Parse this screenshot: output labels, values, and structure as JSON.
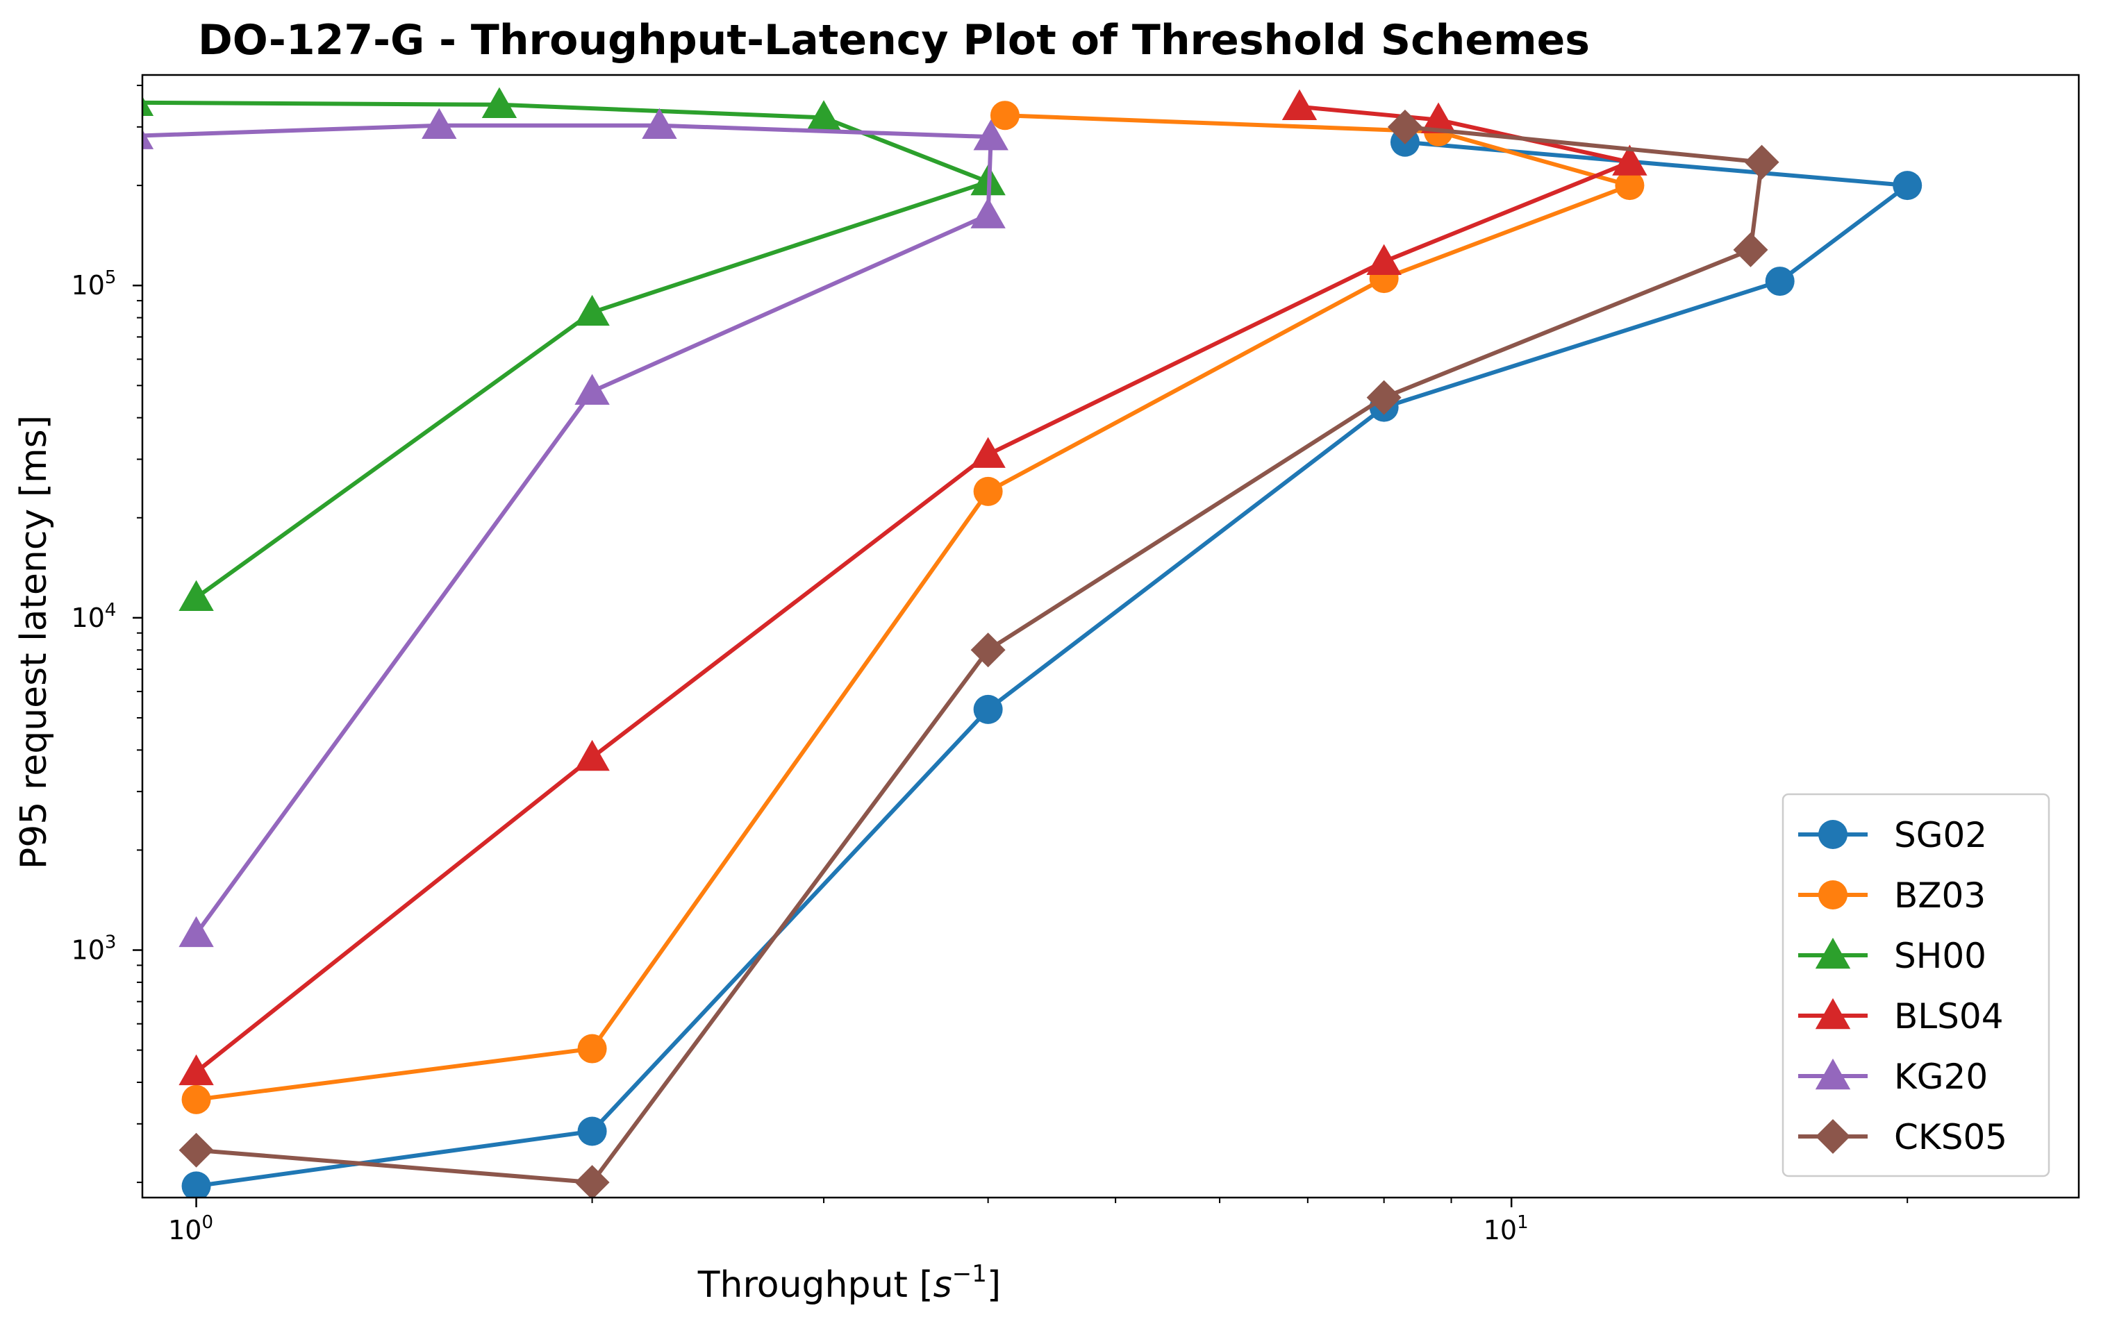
{
  "chart_data": {
    "type": "line",
    "title": "DO-127-G - Throughput-Latency Plot of Threshold Schemes",
    "xlabel": "Throughput [s⁻¹]",
    "ylabel": "P95 request latency [ms]",
    "xscale": "log",
    "yscale": "log",
    "xlim": [
      0.91,
      27
    ],
    "ylim": [
      180,
      430000
    ],
    "xticks": [
      {
        "value": 1,
        "label": "10",
        "exp": "0"
      },
      {
        "value": 10,
        "label": "10",
        "exp": "1"
      }
    ],
    "yticks": [
      {
        "value": 1000,
        "label": "10",
        "exp": "3"
      },
      {
        "value": 10000,
        "label": "10",
        "exp": "4"
      },
      {
        "value": 100000,
        "label": "10",
        "exp": "5"
      }
    ],
    "legend_position": "lower-right",
    "grid": false,
    "series": [
      {
        "name": "SG02",
        "color": "#1f77b4",
        "marker": "circle",
        "x": [
          1,
          2,
          4,
          8,
          16,
          20,
          8.3
        ],
        "y": [
          195,
          285,
          5300,
          43000,
          103000,
          200000,
          270000
        ]
      },
      {
        "name": "BZ03",
        "color": "#ff7f0e",
        "marker": "circle",
        "x": [
          1,
          2,
          4,
          8,
          12.3,
          8.8,
          4.12
        ],
        "y": [
          355,
          505,
          24000,
          105000,
          200000,
          290000,
          325000
        ]
      },
      {
        "name": "SH00",
        "color": "#2ca02c",
        "marker": "triangle",
        "x": [
          1,
          2,
          4,
          3,
          1.7,
          0.9
        ],
        "y": [
          11500,
          83000,
          205000,
          320000,
          350000,
          355000
        ]
      },
      {
        "name": "BLS04",
        "color": "#d62728",
        "marker": "triangle",
        "x": [
          1,
          2,
          4,
          8,
          12.3,
          8.8,
          6.9
        ],
        "y": [
          430,
          3800,
          31000,
          118000,
          235000,
          315000,
          345000
        ]
      },
      {
        "name": "KG20",
        "color": "#9467bd",
        "marker": "triangle",
        "x": [
          1,
          2,
          4,
          4.02,
          2.25,
          1.53,
          0.9
        ],
        "y": [
          1120,
          48000,
          163000,
          280000,
          303000,
          303000,
          282000
        ]
      },
      {
        "name": "CKS05",
        "color": "#8c564b",
        "marker": "diamond",
        "x": [
          1,
          2,
          4,
          8,
          15.2,
          15.5,
          8.3
        ],
        "y": [
          250,
          200,
          8000,
          46000,
          128000,
          235000,
          300000
        ]
      }
    ]
  }
}
